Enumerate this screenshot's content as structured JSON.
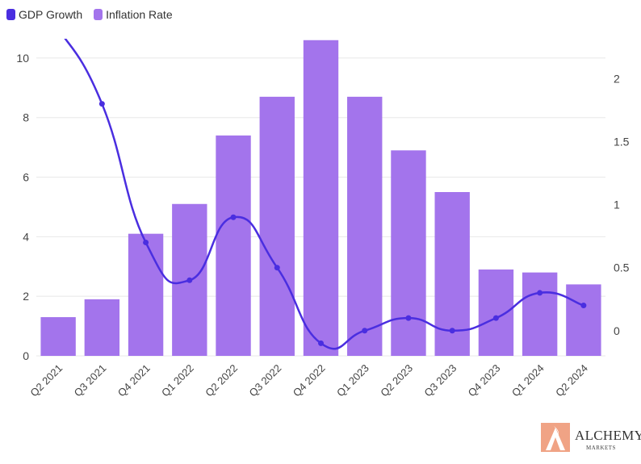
{
  "legend": {
    "gdp_label": "GDP Growth",
    "inflation_label": "Inflation Rate"
  },
  "colors": {
    "bar": "#a374ec",
    "line": "#4a2ee0",
    "grid": "#e8e8e8",
    "axis_text": "#444444",
    "logo_accent": "#f0a385"
  },
  "logo": {
    "word": "ALCHEMY",
    "sub": "MARKETS",
    "icon": "alchemy-flame-logo"
  },
  "chart_data": {
    "type": "bar",
    "categories": [
      "Q2 2021",
      "Q3 2021",
      "Q4 2021",
      "Q1 2022",
      "Q2 2022",
      "Q3 2022",
      "Q4 2022",
      "Q1 2023",
      "Q2 2023",
      "Q3 2023",
      "Q4 2023",
      "Q1 2024",
      "Q2 2024"
    ],
    "series": [
      {
        "name": "Inflation Rate",
        "type": "bar",
        "axis": "left",
        "values": [
          1.3,
          1.9,
          4.1,
          5.1,
          7.4,
          8.7,
          10.6,
          8.7,
          6.9,
          5.5,
          2.9,
          2.8,
          2.4
        ]
      },
      {
        "name": "GDP Growth",
        "type": "line",
        "axis": "right",
        "smooth": true,
        "values": [
          2.4,
          1.8,
          0.7,
          0.4,
          0.9,
          0.5,
          -0.1,
          0.0,
          0.1,
          0.0,
          0.1,
          0.3,
          0.2
        ]
      }
    ],
    "y_left": {
      "ticks": [
        0,
        2,
        4,
        6,
        8,
        10
      ],
      "tick_labels": [
        "0",
        "2",
        "4",
        "6",
        "8",
        "10"
      ],
      "range": [
        0,
        11
      ]
    },
    "y_right": {
      "ticks": [
        0,
        0.5,
        1,
        1.5,
        2
      ],
      "tick_labels": [
        "0",
        "0.5",
        "1",
        "1.5",
        "2"
      ],
      "range": [
        -0.2,
        2.4
      ]
    },
    "grid": true,
    "legend_position": "top-left",
    "title": "",
    "xlabel": "",
    "ylabel": ""
  }
}
